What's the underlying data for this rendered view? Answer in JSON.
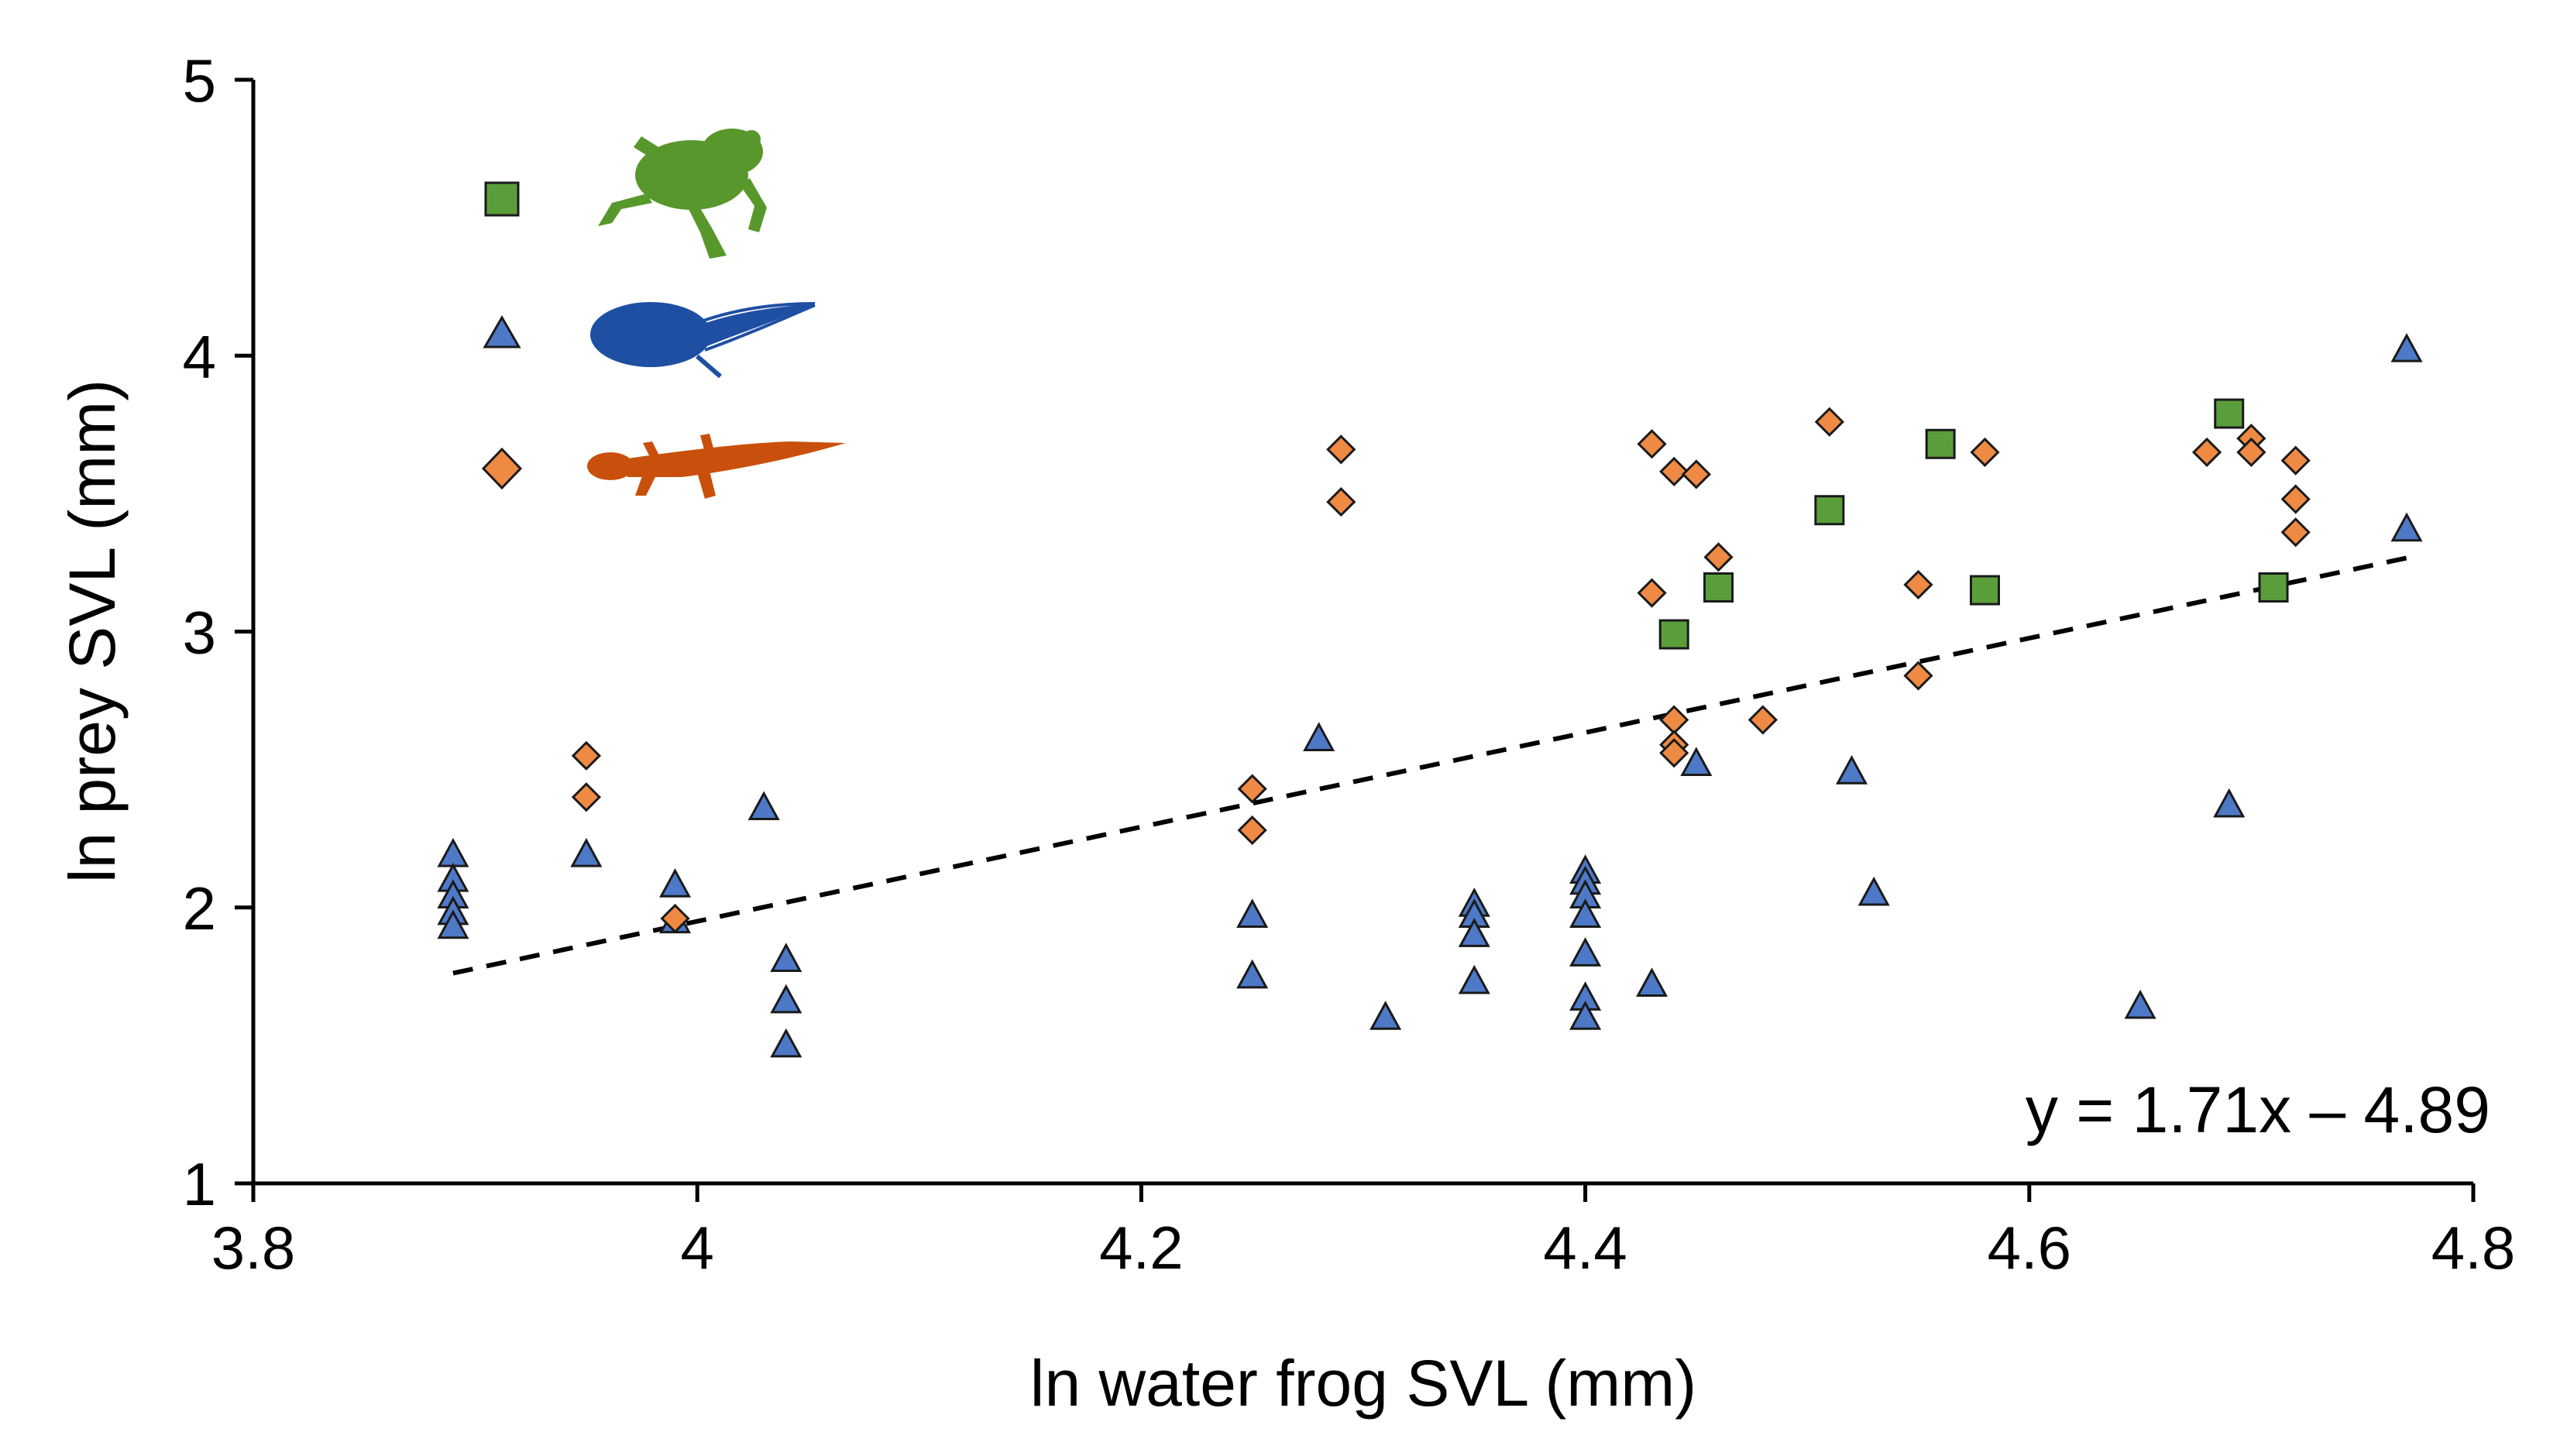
{
  "chart_data": {
    "type": "scatter",
    "title": "",
    "xlabel": "ln water frog SVL (mm)",
    "ylabel": "ln prey SVL (mm)",
    "xlim": [
      3.8,
      4.8
    ],
    "ylim": [
      1,
      5
    ],
    "x_ticks": [
      3.8,
      4.0,
      4.2,
      4.4,
      4.6,
      4.8
    ],
    "x_tick_labels": [
      "3.8",
      "4",
      "4.2",
      "4.4",
      "4.6",
      "4.8"
    ],
    "y_ticks": [
      1,
      2,
      3,
      4,
      5
    ],
    "y_tick_labels": [
      "1",
      "2",
      "3",
      "4",
      "5"
    ],
    "grid": false,
    "legend_position": "top-left",
    "colors": {
      "frog": "#5a9e3c",
      "tadpole": "#4d79c7",
      "newt": "#ee8a44",
      "frog_icon": "#58972b",
      "tadpole_icon": "#1f4fa3",
      "newt_icon": "#c9500c",
      "axis": "#000000"
    },
    "series": [
      {
        "name": "frog",
        "marker": "square",
        "icon": "frog-icon",
        "points": [
          [
            4.44,
            2.99
          ],
          [
            4.46,
            3.16
          ],
          [
            4.51,
            3.44
          ],
          [
            4.56,
            3.68
          ],
          [
            4.58,
            3.15
          ],
          [
            4.69,
            3.79
          ],
          [
            4.71,
            3.16
          ]
        ]
      },
      {
        "name": "tadpole",
        "marker": "triangle",
        "icon": "tadpole-icon",
        "points": [
          [
            3.89,
            2.19
          ],
          [
            3.89,
            2.1
          ],
          [
            3.89,
            2.04
          ],
          [
            3.89,
            1.98
          ],
          [
            3.89,
            1.93
          ],
          [
            3.95,
            2.19
          ],
          [
            3.99,
            2.08
          ],
          [
            3.99,
            1.95
          ],
          [
            4.03,
            2.36
          ],
          [
            4.04,
            1.81
          ],
          [
            4.04,
            1.66
          ],
          [
            4.04,
            1.5
          ],
          [
            4.25,
            1.97
          ],
          [
            4.25,
            1.75
          ],
          [
            4.28,
            2.61
          ],
          [
            4.31,
            1.6
          ],
          [
            4.35,
            2.01
          ],
          [
            4.35,
            1.97
          ],
          [
            4.35,
            1.9
          ],
          [
            4.35,
            1.73
          ],
          [
            4.4,
            2.13
          ],
          [
            4.4,
            2.09
          ],
          [
            4.4,
            2.04
          ],
          [
            4.4,
            1.97
          ],
          [
            4.4,
            1.83
          ],
          [
            4.4,
            1.67
          ],
          [
            4.4,
            1.6
          ],
          [
            4.43,
            1.72
          ],
          [
            4.45,
            2.52
          ],
          [
            4.52,
            2.49
          ],
          [
            4.53,
            2.05
          ],
          [
            4.65,
            1.64
          ],
          [
            4.69,
            2.37
          ],
          [
            4.77,
            4.02
          ],
          [
            4.77,
            3.37
          ]
        ]
      },
      {
        "name": "newt",
        "marker": "diamond",
        "icon": "newt-icon",
        "points": [
          [
            3.95,
            2.55
          ],
          [
            3.95,
            2.4
          ],
          [
            3.99,
            1.96
          ],
          [
            4.25,
            2.43
          ],
          [
            4.25,
            2.28
          ],
          [
            4.29,
            3.66
          ],
          [
            4.29,
            3.47
          ],
          [
            4.43,
            3.68
          ],
          [
            4.43,
            3.14
          ],
          [
            4.44,
            3.58
          ],
          [
            4.45,
            3.57
          ],
          [
            4.44,
            2.68
          ],
          [
            4.44,
            2.59
          ],
          [
            4.44,
            2.56
          ],
          [
            4.46,
            3.27
          ],
          [
            4.48,
            2.68
          ],
          [
            4.51,
            3.76
          ],
          [
            4.55,
            3.17
          ],
          [
            4.55,
            2.84
          ],
          [
            4.58,
            3.65
          ],
          [
            4.68,
            3.65
          ],
          [
            4.7,
            3.7
          ],
          [
            4.7,
            3.65
          ],
          [
            4.72,
            3.62
          ],
          [
            4.72,
            3.48
          ],
          [
            4.72,
            3.36
          ]
        ]
      }
    ],
    "trendline": {
      "slope": 1.71,
      "intercept": -4.89,
      "x_range": [
        3.89,
        4.77
      ],
      "style": "dashed",
      "label": "y = 1.71x – 4.89"
    }
  }
}
